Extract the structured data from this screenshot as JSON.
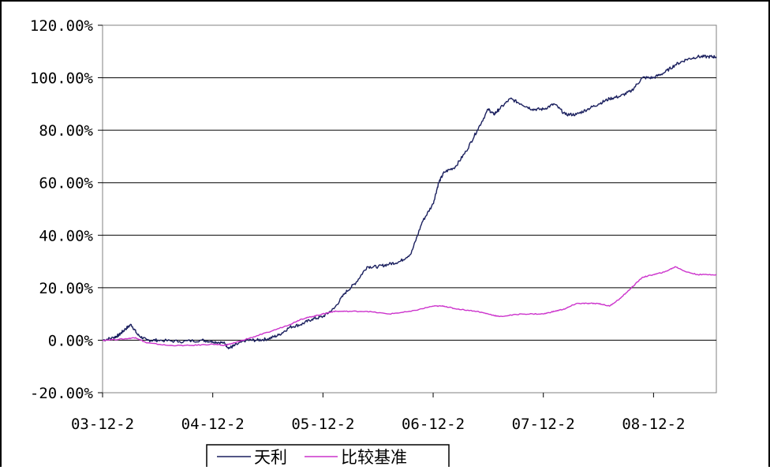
{
  "chart_data": {
    "type": "line",
    "title": "",
    "xlabel": "",
    "ylabel": "",
    "x_tick_labels": [
      "03-12-2",
      "04-12-2",
      "05-12-2",
      "06-12-2",
      "07-12-2",
      "08-12-2"
    ],
    "y_tick_labels": [
      "-20.00%",
      "0.00%",
      "20.00%",
      "40.00%",
      "60.00%",
      "80.00%",
      "100.00%",
      "120.00%"
    ],
    "ylim": [
      -20,
      120
    ],
    "xlim": [
      0,
      5.57
    ],
    "y_unit": "%",
    "grid": "horizontal",
    "legend_position": "bottom",
    "series": [
      {
        "name": "天利",
        "color": "#1a1f5e",
        "x": [
          0,
          0.1,
          0.15,
          0.2,
          0.26,
          0.32,
          0.4,
          0.5,
          0.7,
          0.9,
          1.0,
          1.1,
          1.15,
          1.2,
          1.3,
          1.4,
          1.5,
          1.6,
          1.7,
          1.8,
          1.9,
          2.0,
          2.1,
          2.2,
          2.3,
          2.4,
          2.5,
          2.6,
          2.7,
          2.8,
          2.9,
          3.0,
          3.05,
          3.1,
          3.2,
          3.3,
          3.4,
          3.5,
          3.55,
          3.6,
          3.7,
          3.8,
          3.9,
          4.0,
          4.1,
          4.2,
          4.3,
          4.4,
          4.5,
          4.6,
          4.7,
          4.8,
          4.9,
          5.0,
          5.1,
          5.2,
          5.3,
          5.4,
          5.5,
          5.57
        ],
        "values": [
          0,
          1,
          2,
          4,
          6,
          2,
          0,
          0,
          -0.5,
          0,
          -0.5,
          -1,
          -3,
          -2,
          0,
          0,
          0.5,
          2,
          5,
          6,
          8,
          9,
          12,
          18,
          22,
          28,
          28,
          29,
          30,
          33,
          45,
          52,
          60,
          64,
          66,
          72,
          80,
          88,
          86,
          88,
          92,
          90,
          88,
          88,
          90,
          86,
          86,
          88,
          90,
          92,
          93,
          95,
          100,
          100,
          102,
          105,
          107,
          108,
          108,
          108
        ]
      },
      {
        "name": "比较基准",
        "color": "#cc33cc",
        "x": [
          0,
          0.2,
          0.3,
          0.4,
          0.6,
          0.8,
          1.0,
          1.1,
          1.2,
          1.35,
          1.5,
          1.7,
          1.8,
          1.9,
          2.0,
          2.1,
          2.2,
          2.4,
          2.6,
          2.8,
          3.0,
          3.1,
          3.2,
          3.4,
          3.5,
          3.6,
          3.8,
          4.0,
          4.1,
          4.2,
          4.3,
          4.4,
          4.5,
          4.6,
          4.7,
          4.8,
          4.9,
          5.0,
          5.1,
          5.2,
          5.3,
          5.4,
          5.57
        ],
        "values": [
          0,
          0.5,
          1,
          -1,
          -2,
          -2,
          -1.5,
          -2,
          -1,
          1,
          3,
          6,
          8,
          9,
          10,
          11,
          11,
          11,
          10,
          11,
          13,
          13,
          12,
          11,
          10,
          9,
          10,
          10,
          11,
          12,
          14,
          14,
          14,
          13,
          16,
          20,
          24,
          25,
          26,
          28,
          26,
          25,
          25
        ]
      }
    ]
  }
}
